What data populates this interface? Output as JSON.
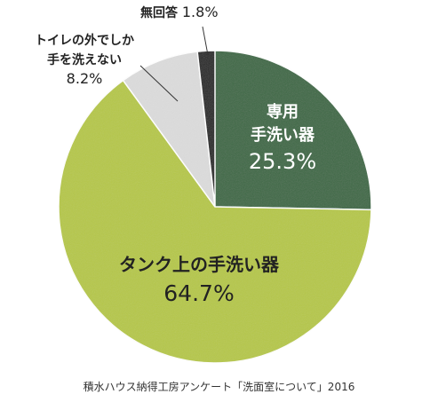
{
  "chart_data": {
    "type": "pie",
    "slices": [
      {
        "label_lines": [
          "専用",
          "手洗い器"
        ],
        "value": 25.3,
        "value_label": "25.3%",
        "color": "#3f6a46",
        "label_color": "#ffffff"
      },
      {
        "label_lines": [
          "タンク上の手洗い器"
        ],
        "value": 64.7,
        "value_label": "64.7%",
        "color": "#b6c74a",
        "label_color": "#222222"
      },
      {
        "label_lines": [
          "トイレの外でしか",
          "手を洗えない"
        ],
        "value": 8.2,
        "value_label": "8.2%",
        "color": "#dcdcdc",
        "label_color": "#222222"
      },
      {
        "label_lines": [
          "無回答"
        ],
        "value": 1.8,
        "value_label": "1.8%",
        "color": "#2a2a2a",
        "label_color": "#222222"
      }
    ],
    "start_direction": "top",
    "direction": "clockwise"
  },
  "caption": "積水ハウス納得工房アンケート「洗面室について」2016"
}
